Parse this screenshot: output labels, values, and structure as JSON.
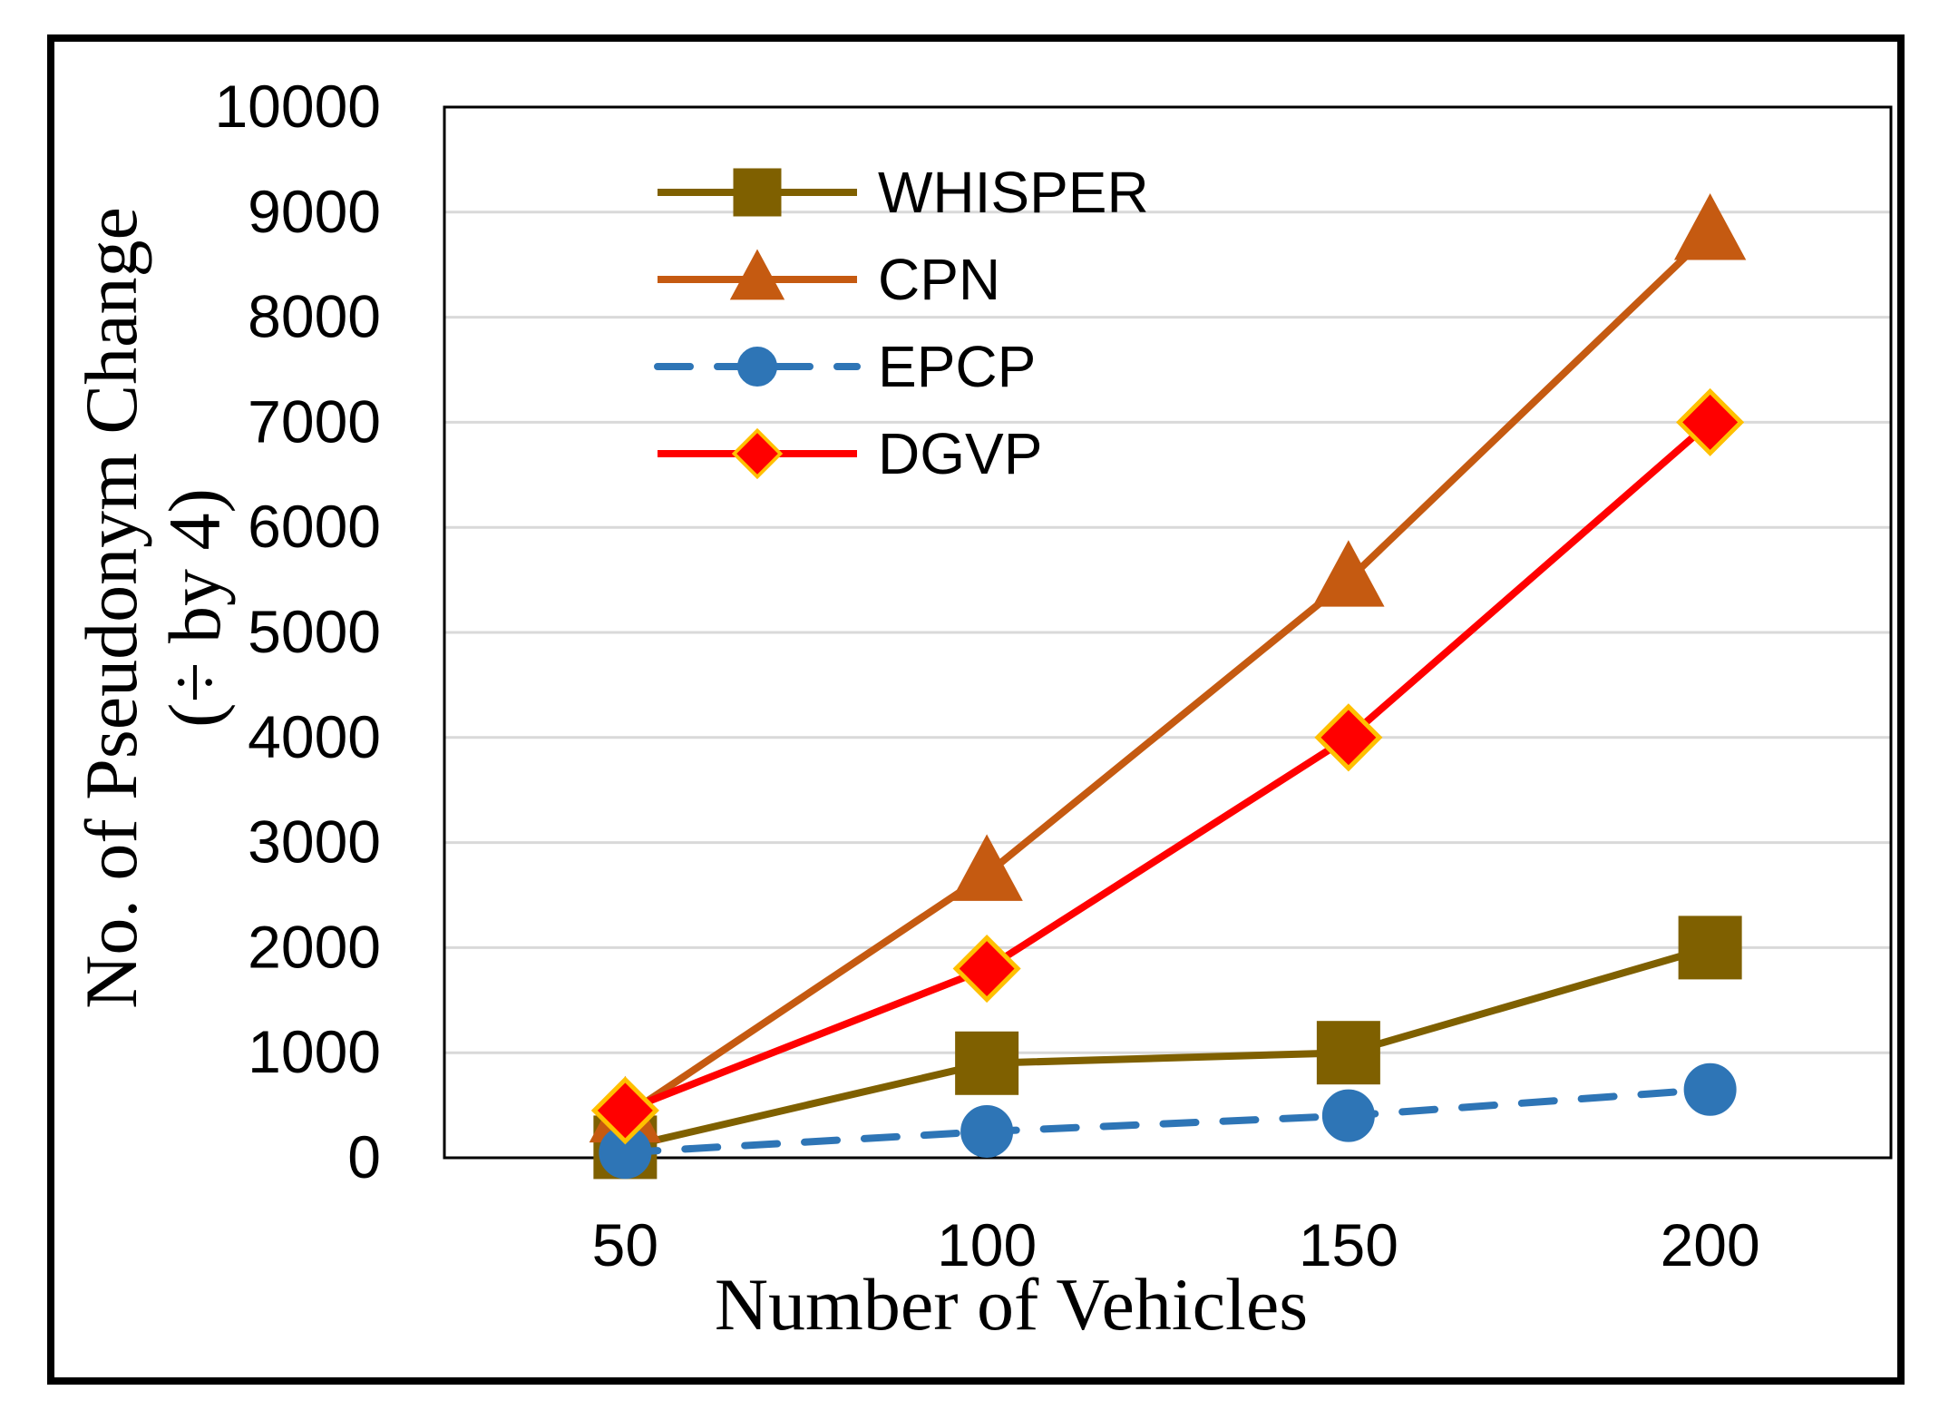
{
  "chart_data": {
    "type": "line",
    "title": "",
    "xlabel": "Number of Vehicles",
    "ylabel": "No. of Pseudonym Change",
    "ylabel_sub": "(÷ by 4)",
    "x": [
      50,
      100,
      150,
      200
    ],
    "x_tick_labels": [
      "50",
      "100",
      "150",
      "200"
    ],
    "ylim": [
      0,
      10000
    ],
    "y_ticks": [
      0,
      1000,
      2000,
      3000,
      4000,
      5000,
      6000,
      7000,
      8000,
      9000,
      10000
    ],
    "y_tick_labels": [
      "0",
      "1000",
      "2000",
      "3000",
      "4000",
      "5000",
      "6000",
      "7000",
      "8000",
      "9000",
      "10000"
    ],
    "grid": true,
    "legend_position": "top-left",
    "series": [
      {
        "name": "WHISPER",
        "values": [
          100,
          900,
          1000,
          2000
        ],
        "color": "#7f6000",
        "marker": "square",
        "dash": "solid"
      },
      {
        "name": "CPN",
        "values": [
          400,
          2700,
          5500,
          8800
        ],
        "color": "#c55a11",
        "marker": "triangle",
        "dash": "solid"
      },
      {
        "name": "EPCP",
        "values": [
          50,
          250,
          400,
          650
        ],
        "color": "#2e75b6",
        "marker": "circle",
        "dash": "dashed"
      },
      {
        "name": "DGVP",
        "values": [
          450,
          1800,
          4000,
          7000
        ],
        "color": "#ff0000",
        "marker": "diamond",
        "marker_fill": "#ff0000",
        "marker_edge": "#ffc000",
        "dash": "solid"
      }
    ]
  }
}
